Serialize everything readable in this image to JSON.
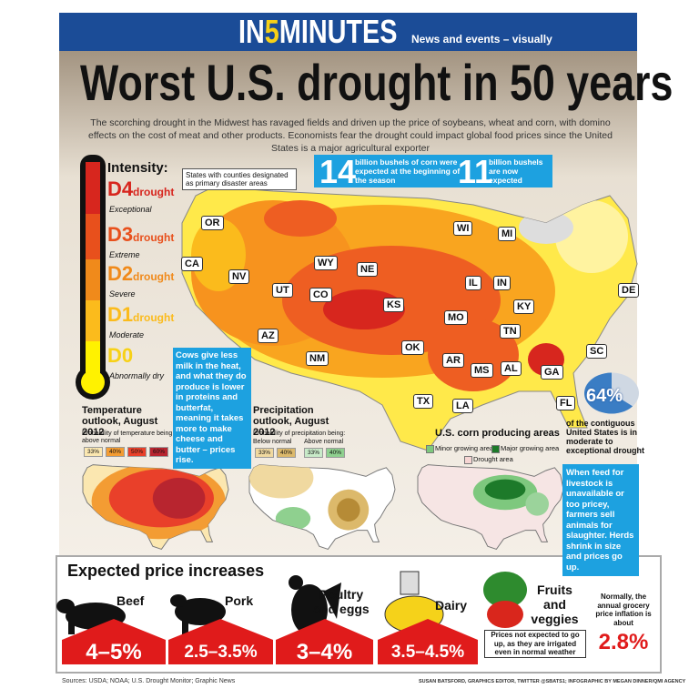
{
  "header": {
    "brand": [
      "IN",
      "5",
      "MINUTES"
    ],
    "tagline": "News and events – visually"
  },
  "title": "Worst U.S. drought in 50 years",
  "intro": "The scorching drought in the Midwest has ravaged fields and driven up the price of soybeans, wheat and corn, with domino effects on the cost of meat and other products. Economists fear the drought could impact global food prices since the United States is a major agricultural exporter",
  "legend": {
    "title": "Intensity:",
    "items": [
      {
        "code": "D4",
        "label": "drought",
        "desc": "Exceptional"
      },
      {
        "code": "D3",
        "label": "drought",
        "desc": "Extreme"
      },
      {
        "code": "D2",
        "label": "drought",
        "desc": "Severe"
      },
      {
        "code": "D1",
        "label": "drought",
        "desc": "Moderate"
      },
      {
        "code": "D0",
        "desc": "Abnormally dry"
      }
    ]
  },
  "map": {
    "note": "States with counties designated as primary disaster areas",
    "states": [
      "OR",
      "CA",
      "NV",
      "WY",
      "NE",
      "UT",
      "CO",
      "KS",
      "AZ",
      "NM",
      "OK",
      "TX",
      "WI",
      "MI",
      "IL",
      "IN",
      "KY",
      "MO",
      "TN",
      "AR",
      "MS",
      "AL",
      "GA",
      "LA",
      "SC",
      "FL",
      "DE"
    ]
  },
  "corn_forecast": {
    "before": {
      "number": "14",
      "text": "billion bushels of corn were expected at the beginning of the season"
    },
    "now": {
      "number": "11",
      "text": "billion bushels are now expected"
    }
  },
  "cows_note": "Cows give less milk in the heat, and what they do produce is lower in proteins and butterfat, meaning it takes more to make cheese and butter – prices rise.",
  "drought_share": {
    "value": 64,
    "label": "64%",
    "text": "of the contiguous United States is in moderate to exceptional drought"
  },
  "temperature_outlook": {
    "title": "Temperature outlook, August 2012",
    "subtitle": "Probability of temperature being above normal",
    "scale": [
      "33%",
      "40%",
      "50%",
      "60%"
    ]
  },
  "precipitation_outlook": {
    "title": "Precipitation outlook, August 2012",
    "subtitle": "Probability of precipitation being:",
    "below": {
      "label": "Below normal",
      "scale": [
        "33%",
        "40%"
      ]
    },
    "above": {
      "label": "Above normal",
      "scale": [
        "33%",
        "40%"
      ]
    }
  },
  "corn_areas": {
    "title": "U.S. corn producing areas",
    "legend": [
      "Minor growing area",
      "Major growing area",
      "Drought area"
    ]
  },
  "feed_note": "When feed for livestock is unavailable or too pricey, farmers sell animals for slaughter. Herds shrink in size and prices go up.",
  "prices": {
    "title": "Expected price increases",
    "items": [
      {
        "name": "Beef",
        "range": "4–5%"
      },
      {
        "name": "Pork",
        "range": "2.5–3.5%"
      },
      {
        "name": "Poultry and eggs",
        "range": "3–4%"
      },
      {
        "name": "Dairy",
        "range": "3.5–4.5%"
      }
    ],
    "fruits": {
      "name": "Fruits and veggies",
      "note": "Prices not expected to go up, as they are irrigated even in normal weather"
    },
    "normal": {
      "text": "Normally, the annual grocery price inflation is about",
      "value": "2.8%"
    }
  },
  "footer": {
    "sources": "Sources: USDA; NOAA; U.S. Drought Monitor; Graphic News",
    "credits": "SUSAN BATSFORD, GRAPHICS EDITOR, TWITTER @SBATS1; INFOGRAPHIC BY MEGAN DINNER/QMI AGENCY"
  }
}
